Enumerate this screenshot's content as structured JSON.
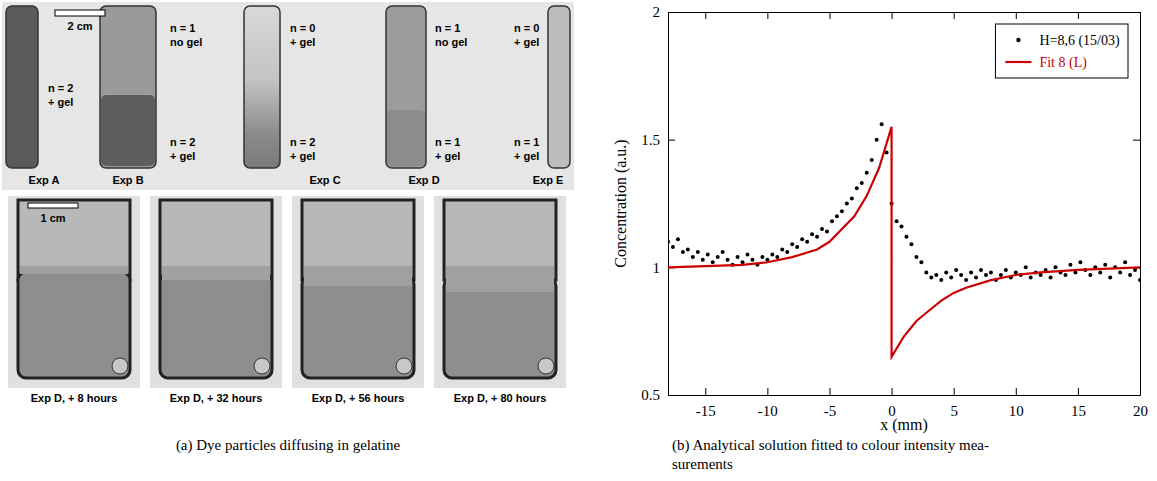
{
  "chart_data": {
    "type": "scatter",
    "xlabel": "x (mm)",
    "ylabel": "Concentration (a.u.)",
    "xlim": [
      -18,
      20
    ],
    "ylim": [
      0.5,
      2
    ],
    "xticks": [
      -15,
      -10,
      -5,
      0,
      5,
      10,
      15,
      20
    ],
    "yticks": [
      0.5,
      1,
      1.5,
      2
    ],
    "legend": "upper right",
    "series": [
      {
        "name": "H=8,6 (15/03)",
        "type": "scatter",
        "color": "#000000",
        "marker": "circle",
        "x": [
          -18,
          -17.6,
          -17.2,
          -16.8,
          -16.4,
          -16,
          -15.6,
          -15.2,
          -14.8,
          -14.4,
          -14,
          -13.6,
          -13.2,
          -12.8,
          -12.4,
          -12,
          -11.6,
          -11.2,
          -10.8,
          -10.4,
          -10,
          -9.6,
          -9.2,
          -8.8,
          -8.4,
          -8,
          -7.6,
          -7.2,
          -6.8,
          -6.4,
          -6,
          -5.6,
          -5.2,
          -4.8,
          -4.4,
          -4,
          -3.6,
          -3.2,
          -2.8,
          -2.4,
          -2,
          -1.6,
          -1.2,
          -0.8,
          -0.4,
          0,
          0.4,
          0.8,
          1.2,
          1.6,
          2,
          2.4,
          2.8,
          3.2,
          3.6,
          4,
          4.4,
          4.8,
          5.2,
          5.6,
          6,
          6.4,
          6.8,
          7.2,
          7.6,
          8,
          8.4,
          8.8,
          9.2,
          9.6,
          10,
          10.4,
          10.8,
          11.2,
          11.6,
          12,
          12.4,
          12.8,
          13.2,
          13.6,
          14,
          14.4,
          14.8,
          15.2,
          15.6,
          16,
          16.4,
          16.8,
          17.2,
          17.6,
          18,
          18.4,
          18.8,
          19.2,
          19.6,
          20
        ],
        "values": [
          1.1,
          1.08,
          1.11,
          1.06,
          1.07,
          1.04,
          1.06,
          1.03,
          1.05,
          1.02,
          1.04,
          1.06,
          1.03,
          1.01,
          1.04,
          1.02,
          1.05,
          1.03,
          1.01,
          1.04,
          1.03,
          1.05,
          1.04,
          1.07,
          1.06,
          1.09,
          1.08,
          1.11,
          1.1,
          1.13,
          1.12,
          1.15,
          1.14,
          1.18,
          1.2,
          1.22,
          1.25,
          1.27,
          1.31,
          1.33,
          1.37,
          1.42,
          1.5,
          1.56,
          1.45,
          1.25,
          1.18,
          1.16,
          1.12,
          1.09,
          1.04,
          1.02,
          0.98,
          0.96,
          0.97,
          0.95,
          0.98,
          0.96,
          0.99,
          0.97,
          0.95,
          0.98,
          0.96,
          0.99,
          0.97,
          0.98,
          0.95,
          0.97,
          0.99,
          0.96,
          0.98,
          0.97,
          1.0,
          0.96,
          0.98,
          0.97,
          0.99,
          0.96,
          1.0,
          0.98,
          0.97,
          1.01,
          0.98,
          1.02,
          0.99,
          0.97,
          1.0,
          0.98,
          1.01,
          0.96,
          1.0,
          0.98,
          1.02,
          0.97,
          0.99,
          0.95
        ]
      },
      {
        "name": "Fit 8 (L)",
        "type": "line",
        "color": "#cc0000",
        "line_style": "solid",
        "x": [
          -18,
          -12,
          -10,
          -8,
          -6,
          -5,
          -4,
          -3,
          -2,
          -1,
          0,
          0,
          1,
          2,
          3,
          4,
          5,
          6,
          8,
          10,
          12,
          15,
          20
        ],
        "values": [
          1.0,
          1.01,
          1.02,
          1.04,
          1.07,
          1.1,
          1.15,
          1.2,
          1.28,
          1.39,
          1.55,
          0.65,
          0.73,
          0.79,
          0.83,
          0.87,
          0.9,
          0.92,
          0.95,
          0.97,
          0.98,
          0.99,
          1.0
        ]
      }
    ]
  },
  "photo": {
    "scale_bar": "2 cm",
    "experiments": [
      "Exp A",
      "Exp B",
      "Exp C",
      "Exp D",
      "Exp E"
    ],
    "labels": [
      [
        "n = 2",
        "+ gel"
      ],
      [
        "n = 1",
        "no gel"
      ],
      [
        "n = 2",
        "+ gel"
      ],
      [
        "n = 0",
        "+ gel"
      ],
      [
        "n = 2",
        "+ gel"
      ],
      [
        "n = 1",
        "no gel"
      ],
      [
        "n = 1",
        "+ gel"
      ],
      [
        "n = 0",
        "+ gel"
      ],
      [
        "n = 1",
        "+ gel"
      ]
    ],
    "time_scale_bar": "1 cm",
    "time_captions": [
      "Exp D, + 8 hours",
      "Exp D, + 32 hours",
      "Exp D, + 56 hours",
      "Exp D, + 80 hours"
    ]
  },
  "captions": {
    "a": [
      "(a) Dye particles diffusing in gelatine"
    ],
    "b": [
      "(b) Analytical solution fitted to colour intensity mea-",
      "surements"
    ]
  }
}
